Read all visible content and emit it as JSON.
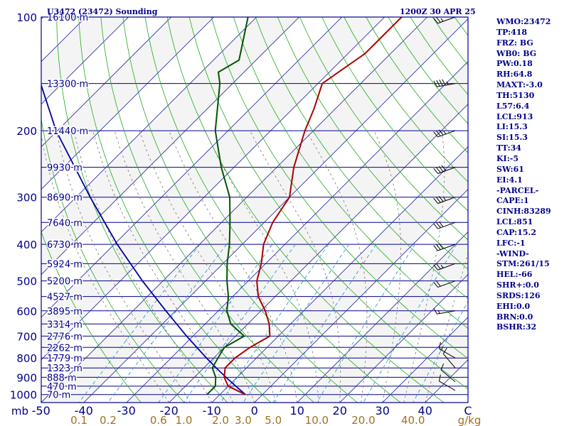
{
  "station_title": "U3472 (23472) Sounding",
  "valid_time": "1200Z 30 APR 25",
  "indices": [
    "WMO:23472",
    "TP:418",
    "FRZ: BG",
    "WB0: BG",
    "PW:0.18",
    "RH:64.8",
    "MAXT:-3.0",
    "TH:5130",
    "L57:6.4",
    "LCL:913",
    "LI:15.3",
    "SI:15.3",
    "TT:34",
    "KI:-5",
    "SW:61",
    "EI:4.1",
    "-PARCEL-",
    "CAPE:1",
    "CINH:83289",
    "LCL:851",
    "CAP:15.2",
    "LFC:-1",
    "-WIND-",
    "STM:261/15",
    "HEL:-66",
    "SHR+:0.0",
    "SRDS:126",
    "EHI:0.0",
    "BRN:0.0",
    "BSHR:32"
  ],
  "colors": {
    "isobar": "#00008b",
    "isotherm": "#1a1aa8",
    "dry_adiabat": "#22aa22",
    "moist_adiabat": "#777777",
    "mixing_ratio": "#3399cc",
    "temperature": "#aa0000",
    "dewpoint": "#005500",
    "parcel": "#0000a0",
    "mixing_ratio_label": "#a07020",
    "wind_barb": "#000000",
    "text": "#00008b"
  },
  "chart_data": {
    "type": "skew-t",
    "pressure_unit_label": "mb",
    "mixing_ratio_unit_label": "g/kg",
    "pressure_ticks": [
      100,
      200,
      300,
      400,
      500,
      600,
      700,
      800,
      900,
      1000
    ],
    "temperature_ticks": [
      -50,
      -40,
      -30,
      -20,
      -10,
      0,
      10,
      20,
      30,
      40
    ],
    "temperature_tick_labels": [
      "-50",
      "-40",
      "-30",
      "-20",
      "-10",
      "0",
      "10",
      "20",
      "30",
      "40"
    ],
    "right_corner_label": "C",
    "mixing_ratio_labels": [
      "0.1",
      "0.2",
      "0.6",
      "1.0",
      "2.0",
      "3.0",
      "5.0",
      "10.0",
      "20.0",
      "40.0"
    ],
    "height_labels": [
      {
        "p": 100,
        "text": "16100 m"
      },
      {
        "p": 150,
        "text": "13300 m"
      },
      {
        "p": 200,
        "text": "11440 m"
      },
      {
        "p": 250,
        "text": "9930 m"
      },
      {
        "p": 300,
        "text": "8690 m"
      },
      {
        "p": 350,
        "text": "7640 m"
      },
      {
        "p": 400,
        "text": "6730 m"
      },
      {
        "p": 450,
        "text": "5924 m"
      },
      {
        "p": 500,
        "text": "5200 m"
      },
      {
        "p": 550,
        "text": "4527 m"
      },
      {
        "p": 600,
        "text": "3895 m"
      },
      {
        "p": 650,
        "text": "3314 m"
      },
      {
        "p": 700,
        "text": "2776 m"
      },
      {
        "p": 750,
        "text": "2262 m"
      },
      {
        "p": 800,
        "text": "1779 m"
      },
      {
        "p": 850,
        "text": "1323 m"
      },
      {
        "p": 900,
        "text": "888 m"
      },
      {
        "p": 950,
        "text": "470 m"
      },
      {
        "p": 1000,
        "text": "70 m"
      }
    ],
    "temperature_profile": [
      {
        "p": 1000,
        "t": -4
      },
      {
        "p": 950,
        "t": -10
      },
      {
        "p": 900,
        "t": -13
      },
      {
        "p": 850,
        "t": -15
      },
      {
        "p": 800,
        "t": -15
      },
      {
        "p": 750,
        "t": -14
      },
      {
        "p": 700,
        "t": -12
      },
      {
        "p": 650,
        "t": -15
      },
      {
        "p": 600,
        "t": -19
      },
      {
        "p": 550,
        "t": -24
      },
      {
        "p": 500,
        "t": -28
      },
      {
        "p": 450,
        "t": -31
      },
      {
        "p": 400,
        "t": -35
      },
      {
        "p": 350,
        "t": -38
      },
      {
        "p": 300,
        "t": -40
      },
      {
        "p": 250,
        "t": -46
      },
      {
        "p": 200,
        "t": -52
      },
      {
        "p": 175,
        "t": -55
      },
      {
        "p": 150,
        "t": -59
      },
      {
        "p": 125,
        "t": -56
      },
      {
        "p": 110,
        "t": -56
      },
      {
        "p": 100,
        "t": -56
      }
    ],
    "dewpoint_profile": [
      {
        "p": 1000,
        "t": -13
      },
      {
        "p": 950,
        "t": -13
      },
      {
        "p": 900,
        "t": -15
      },
      {
        "p": 850,
        "t": -18
      },
      {
        "p": 800,
        "t": -19
      },
      {
        "p": 750,
        "t": -20
      },
      {
        "p": 700,
        "t": -18
      },
      {
        "p": 650,
        "t": -24
      },
      {
        "p": 600,
        "t": -28
      },
      {
        "p": 550,
        "t": -31
      },
      {
        "p": 500,
        "t": -35
      },
      {
        "p": 450,
        "t": -39
      },
      {
        "p": 400,
        "t": -43
      },
      {
        "p": 350,
        "t": -48
      },
      {
        "p": 300,
        "t": -54
      },
      {
        "p": 250,
        "t": -63
      },
      {
        "p": 200,
        "t": -73
      },
      {
        "p": 150,
        "t": -83
      },
      {
        "p": 140,
        "t": -86
      },
      {
        "p": 130,
        "t": -84
      },
      {
        "p": 100,
        "t": -92
      }
    ],
    "parcel_profile": [
      {
        "p": 1000,
        "t": -4
      },
      {
        "p": 950,
        "t": -8.2
      },
      {
        "p": 900,
        "t": -12.6
      },
      {
        "p": 851,
        "t": -17
      },
      {
        "p": 800,
        "t": -21.7
      },
      {
        "p": 700,
        "t": -31.5
      },
      {
        "p": 600,
        "t": -42.3
      },
      {
        "p": 500,
        "t": -54.8
      },
      {
        "p": 400,
        "t": -69.3
      },
      {
        "p": 300,
        "t": -86.7
      },
      {
        "p": 200,
        "t": -110.3
      },
      {
        "p": 150,
        "t": -125
      },
      {
        "p": 100,
        "t": -146
      }
    ],
    "wind_barbs": [
      {
        "p": 975,
        "dir": 300,
        "spd": 10
      },
      {
        "p": 925,
        "dir": 310,
        "spd": 10
      },
      {
        "p": 850,
        "dir": 320,
        "spd": 10
      },
      {
        "p": 800,
        "dir": 300,
        "spd": 15
      },
      {
        "p": 600,
        "dir": 260,
        "spd": 15
      },
      {
        "p": 500,
        "dir": 250,
        "spd": 20
      },
      {
        "p": 450,
        "dir": 250,
        "spd": 25
      },
      {
        "p": 400,
        "dir": 250,
        "spd": 30
      },
      {
        "p": 350,
        "dir": 250,
        "spd": 30
      },
      {
        "p": 300,
        "dir": 250,
        "spd": 35
      },
      {
        "p": 250,
        "dir": 250,
        "spd": 40
      },
      {
        "p": 200,
        "dir": 250,
        "spd": 35
      },
      {
        "p": 150,
        "dir": 260,
        "spd": 45
      },
      {
        "p": 100,
        "dir": 250,
        "spd": 25
      }
    ]
  }
}
